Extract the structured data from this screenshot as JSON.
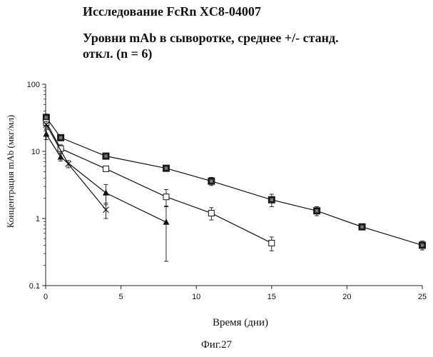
{
  "chart_data": {
    "type": "line",
    "title": "Исследование FcRn XC8-04007",
    "subtitle": "Уровни mAb в сыворотке, среднее +/- станд. откл. (n = 6)",
    "xlabel": "Время (дни)",
    "ylabel": "Концентрация mAb (мкг/мл)",
    "y_scale": "log",
    "xlim": [
      0,
      25
    ],
    "ylim": [
      0.1,
      100
    ],
    "x_ticks": [
      0,
      5,
      10,
      15,
      20,
      25
    ],
    "y_ticks": [
      0.1,
      1,
      10,
      100
    ],
    "y_tick_labels": [
      "0.1",
      "1",
      "10",
      "100"
    ],
    "grid": false,
    "legend": "none",
    "series": [
      {
        "marker": "filled-square",
        "x": [
          0.04,
          1,
          4,
          8,
          11,
          15,
          18,
          21,
          25
        ],
        "y": [
          32,
          16,
          8.5,
          5.6,
          3.6,
          1.9,
          1.3,
          0.75,
          0.4
        ],
        "err": [
          4,
          1.5,
          0.8,
          0.5,
          0.5,
          0.4,
          0.2,
          0.06,
          0.06
        ]
      },
      {
        "marker": "open-square",
        "x": [
          0.04,
          1,
          4,
          8,
          11,
          15
        ],
        "y": [
          27,
          11,
          5.5,
          2.1,
          1.2,
          0.43
        ],
        "err": [
          3,
          1.5,
          0.4,
          0.6,
          0.25,
          0.1
        ]
      },
      {
        "marker": "filled-triangle",
        "x": [
          0.04,
          1,
          4,
          8
        ],
        "y": [
          18,
          8.2,
          2.4,
          0.88
        ],
        "err": [
          3,
          1,
          0.8,
          0.65
        ]
      },
      {
        "marker": "cross",
        "x": [
          0.04,
          1.5,
          4
        ],
        "y": [
          25,
          6.5,
          1.35
        ],
        "err": [
          3,
          0.8,
          0.35
        ]
      }
    ]
  },
  "caption": "Фиг.27"
}
